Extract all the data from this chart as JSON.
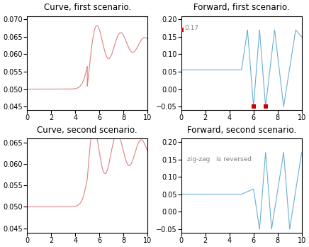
{
  "title_curve1": "Curve, first scenario.",
  "title_fwd1": "Forward, first scenario.",
  "title_curve2": "Curve, second scenario.",
  "title_fwd2": "Forward, second scenario.",
  "curve_color": "#e08080",
  "fwd_color": "#6baed6",
  "red_marker_color": "#cc0000",
  "curve1_ylim": [
    0.044,
    0.071
  ],
  "curve1_yticks": [
    0.045,
    0.05,
    0.055,
    0.06,
    0.065,
    0.07
  ],
  "curve2_ylim": [
    0.044,
    0.066
  ],
  "curve2_yticks": [
    0.045,
    0.05,
    0.055,
    0.06,
    0.065
  ],
  "fwd_ylim": [
    -0.06,
    0.21
  ],
  "fwd_yticks": [
    -0.05,
    0,
    0.05,
    0.1,
    0.15,
    0.2
  ],
  "xlim": [
    0,
    10
  ],
  "xticks": [
    0,
    2,
    4,
    6,
    8,
    10
  ],
  "annotation_text": "zig-zag   is reversed",
  "fwd1_annotation": "0.17",
  "red_points_fwd1": [
    [
      0,
      0.17
    ],
    [
      6,
      -0.05
    ],
    [
      7,
      -0.05
    ]
  ],
  "title_fontsize": 8.5,
  "tick_fontsize": 7,
  "annotation_fontsize": 6.5
}
